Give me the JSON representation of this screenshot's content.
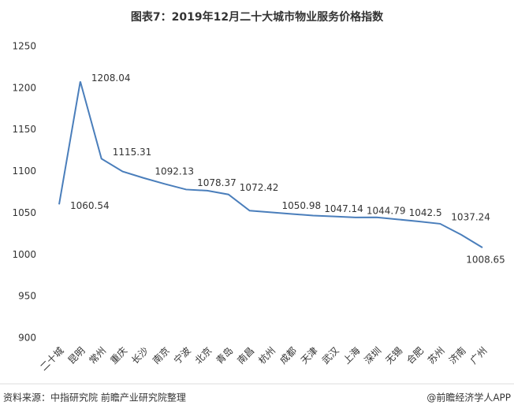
{
  "chart_data": {
    "type": "line",
    "title": "图表7：2019年12月二十大城市物业服务价格指数",
    "categories": [
      "二十城",
      "昆明",
      "常州",
      "重庆",
      "长沙",
      "南京",
      "宁波",
      "北京",
      "青岛",
      "南昌",
      "杭州",
      "成都",
      "天津",
      "武汉",
      "上海",
      "深圳",
      "无锡",
      "合肥",
      "苏州",
      "济南",
      "广州"
    ],
    "series": [
      {
        "name": "物业服务价格指数",
        "color": "#4a7ebb",
        "values": [
          1060.54,
          1208.04,
          1115.31,
          1100,
          1092.13,
          1085,
          1078.37,
          1077,
          1072.42,
          1053,
          1050.98,
          1049,
          1047.14,
          1046,
          1044.79,
          1045,
          1042.5,
          1040,
          1037.24,
          1024,
          1008.65
        ],
        "value_labels": [
          "1060.54",
          "1208.04",
          "1115.31",
          null,
          "1092.13",
          null,
          "1078.37",
          null,
          "1072.42",
          null,
          "1050.98",
          null,
          "1047.14",
          null,
          "1044.79",
          null,
          "1042.5",
          null,
          "1037.24",
          null,
          "1008.65"
        ]
      }
    ],
    "ylim": [
      900,
      1250
    ],
    "yticks": [
      900,
      950,
      1000,
      1050,
      1100,
      1150,
      1200,
      1250
    ],
    "grid": false,
    "source": "资料来源：中指研究院   前瞻产业研究院整理",
    "credit": "@前瞻经济学人APP"
  }
}
